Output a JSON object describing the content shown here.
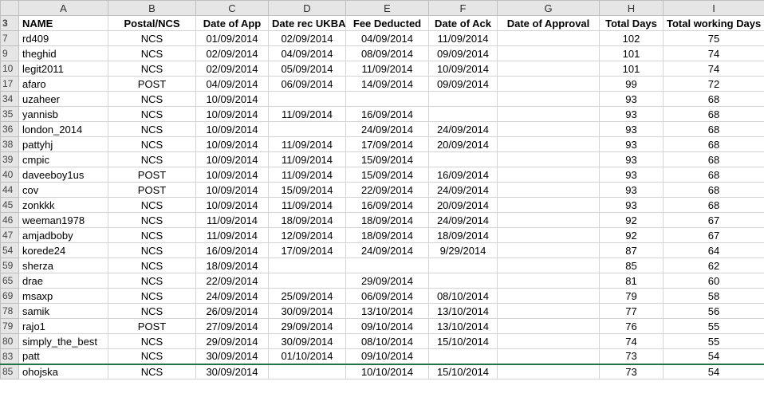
{
  "column_letters": [
    "A",
    "B",
    "C",
    "D",
    "E",
    "F",
    "G",
    "H",
    "I"
  ],
  "header": {
    "row_number": "3",
    "cells": [
      "NAME",
      "Postal/NCS",
      "Date of App",
      "Date rec UKBA",
      "Fee Deducted",
      "Date of Ack",
      "Date of Approval",
      "Total Days",
      "Total working Days"
    ]
  },
  "rows": [
    {
      "n": "7",
      "cells": [
        "rd409",
        "NCS",
        "01/09/2014",
        "02/09/2014",
        "04/09/2014",
        "11/09/2014",
        "",
        "102",
        "75"
      ]
    },
    {
      "n": "9",
      "cells": [
        "theghid",
        "NCS",
        "02/09/2014",
        "04/09/2014",
        "08/09/2014",
        "09/09/2014",
        "",
        "101",
        "74"
      ]
    },
    {
      "n": "10",
      "cells": [
        "legit2011",
        "NCS",
        "02/09/2014",
        "05/09/2014",
        "11/09/2014",
        "10/09/2014",
        "",
        "101",
        "74"
      ]
    },
    {
      "n": "17",
      "cells": [
        "afaro",
        "POST",
        "04/09/2014",
        "06/09/2014",
        "14/09/2014",
        "09/09/2014",
        "",
        "99",
        "72"
      ]
    },
    {
      "n": "34",
      "cells": [
        "uzaheer",
        "NCS",
        "10/09/2014",
        "",
        "",
        "",
        "",
        "93",
        "68"
      ]
    },
    {
      "n": "35",
      "cells": [
        "yannisb",
        "NCS",
        "10/09/2014",
        "11/09/2014",
        "16/09/2014",
        "",
        "",
        "93",
        "68"
      ]
    },
    {
      "n": "36",
      "cells": [
        "london_2014",
        "NCS",
        "10/09/2014",
        "",
        "24/09/2014",
        "24/09/2014",
        "",
        "93",
        "68"
      ]
    },
    {
      "n": "38",
      "cells": [
        "pattyhj",
        "NCS",
        "10/09/2014",
        "11/09/2014",
        "17/09/2014",
        "20/09/2014",
        "",
        "93",
        "68"
      ]
    },
    {
      "n": "39",
      "cells": [
        "cmpic",
        "NCS",
        "10/09/2014",
        "11/09/2014",
        "15/09/2014",
        "",
        "",
        "93",
        "68"
      ]
    },
    {
      "n": "40",
      "cells": [
        "daveeboy1us",
        "POST",
        "10/09/2014",
        "11/09/2014",
        "15/09/2014",
        "16/09/2014",
        "",
        "93",
        "68"
      ]
    },
    {
      "n": "44",
      "cells": [
        "cov",
        "POST",
        "10/09/2014",
        "15/09/2014",
        "22/09/2014",
        "24/09/2014",
        "",
        "93",
        "68"
      ]
    },
    {
      "n": "45",
      "cells": [
        "zonkkk",
        "NCS",
        "10/09/2014",
        "11/09/2014",
        "16/09/2014",
        "20/09/2014",
        "",
        "93",
        "68"
      ]
    },
    {
      "n": "46",
      "cells": [
        "weeman1978",
        "NCS",
        "11/09/2014",
        "18/09/2014",
        "18/09/2014",
        "24/09/2014",
        "",
        "92",
        "67"
      ]
    },
    {
      "n": "47",
      "cells": [
        "amjadboby",
        "NCS",
        "11/09/2014",
        "12/09/2014",
        "18/09/2014",
        "18/09/2014",
        "",
        "92",
        "67"
      ]
    },
    {
      "n": "54",
      "cells": [
        "korede24",
        "NCS",
        "16/09/2014",
        "17/09/2014",
        "24/09/2014",
        "9/29/2014",
        "",
        "87",
        "64"
      ]
    },
    {
      "n": "59",
      "cells": [
        "sherza",
        "NCS",
        "18/09/2014",
        "",
        "",
        "",
        "",
        "85",
        "62"
      ]
    },
    {
      "n": "65",
      "cells": [
        "drae",
        "NCS",
        "22/09/2014",
        "",
        "29/09/2014",
        "",
        "",
        "81",
        "60"
      ]
    },
    {
      "n": "69",
      "cells": [
        "msaxp",
        "NCS",
        "24/09/2014",
        "25/09/2014",
        "06/09/2014",
        "08/10/2014",
        "",
        "79",
        "58"
      ]
    },
    {
      "n": "78",
      "cells": [
        "samik",
        "NCS",
        "26/09/2014",
        "30/09/2014",
        "13/10/2014",
        "13/10/2014",
        "",
        "77",
        "56"
      ]
    },
    {
      "n": "79",
      "cells": [
        "rajo1",
        "POST",
        "27/09/2014",
        "29/09/2014",
        "09/10/2014",
        "13/10/2014",
        "",
        "76",
        "55"
      ]
    },
    {
      "n": "80",
      "cells": [
        "simply_the_best",
        "NCS",
        "29/09/2014",
        "30/09/2014",
        "08/10/2014",
        "15/10/2014",
        "",
        "74",
        "55"
      ]
    },
    {
      "n": "83",
      "cells": [
        "patt",
        "NCS",
        "30/09/2014",
        "01/10/2014",
        "09/10/2014",
        "",
        "",
        "73",
        "54"
      ]
    },
    {
      "n": "85",
      "cells": [
        "ohojska",
        "NCS",
        "30/09/2014",
        "",
        "10/10/2014",
        "15/10/2014",
        "",
        "73",
        "54"
      ]
    }
  ]
}
